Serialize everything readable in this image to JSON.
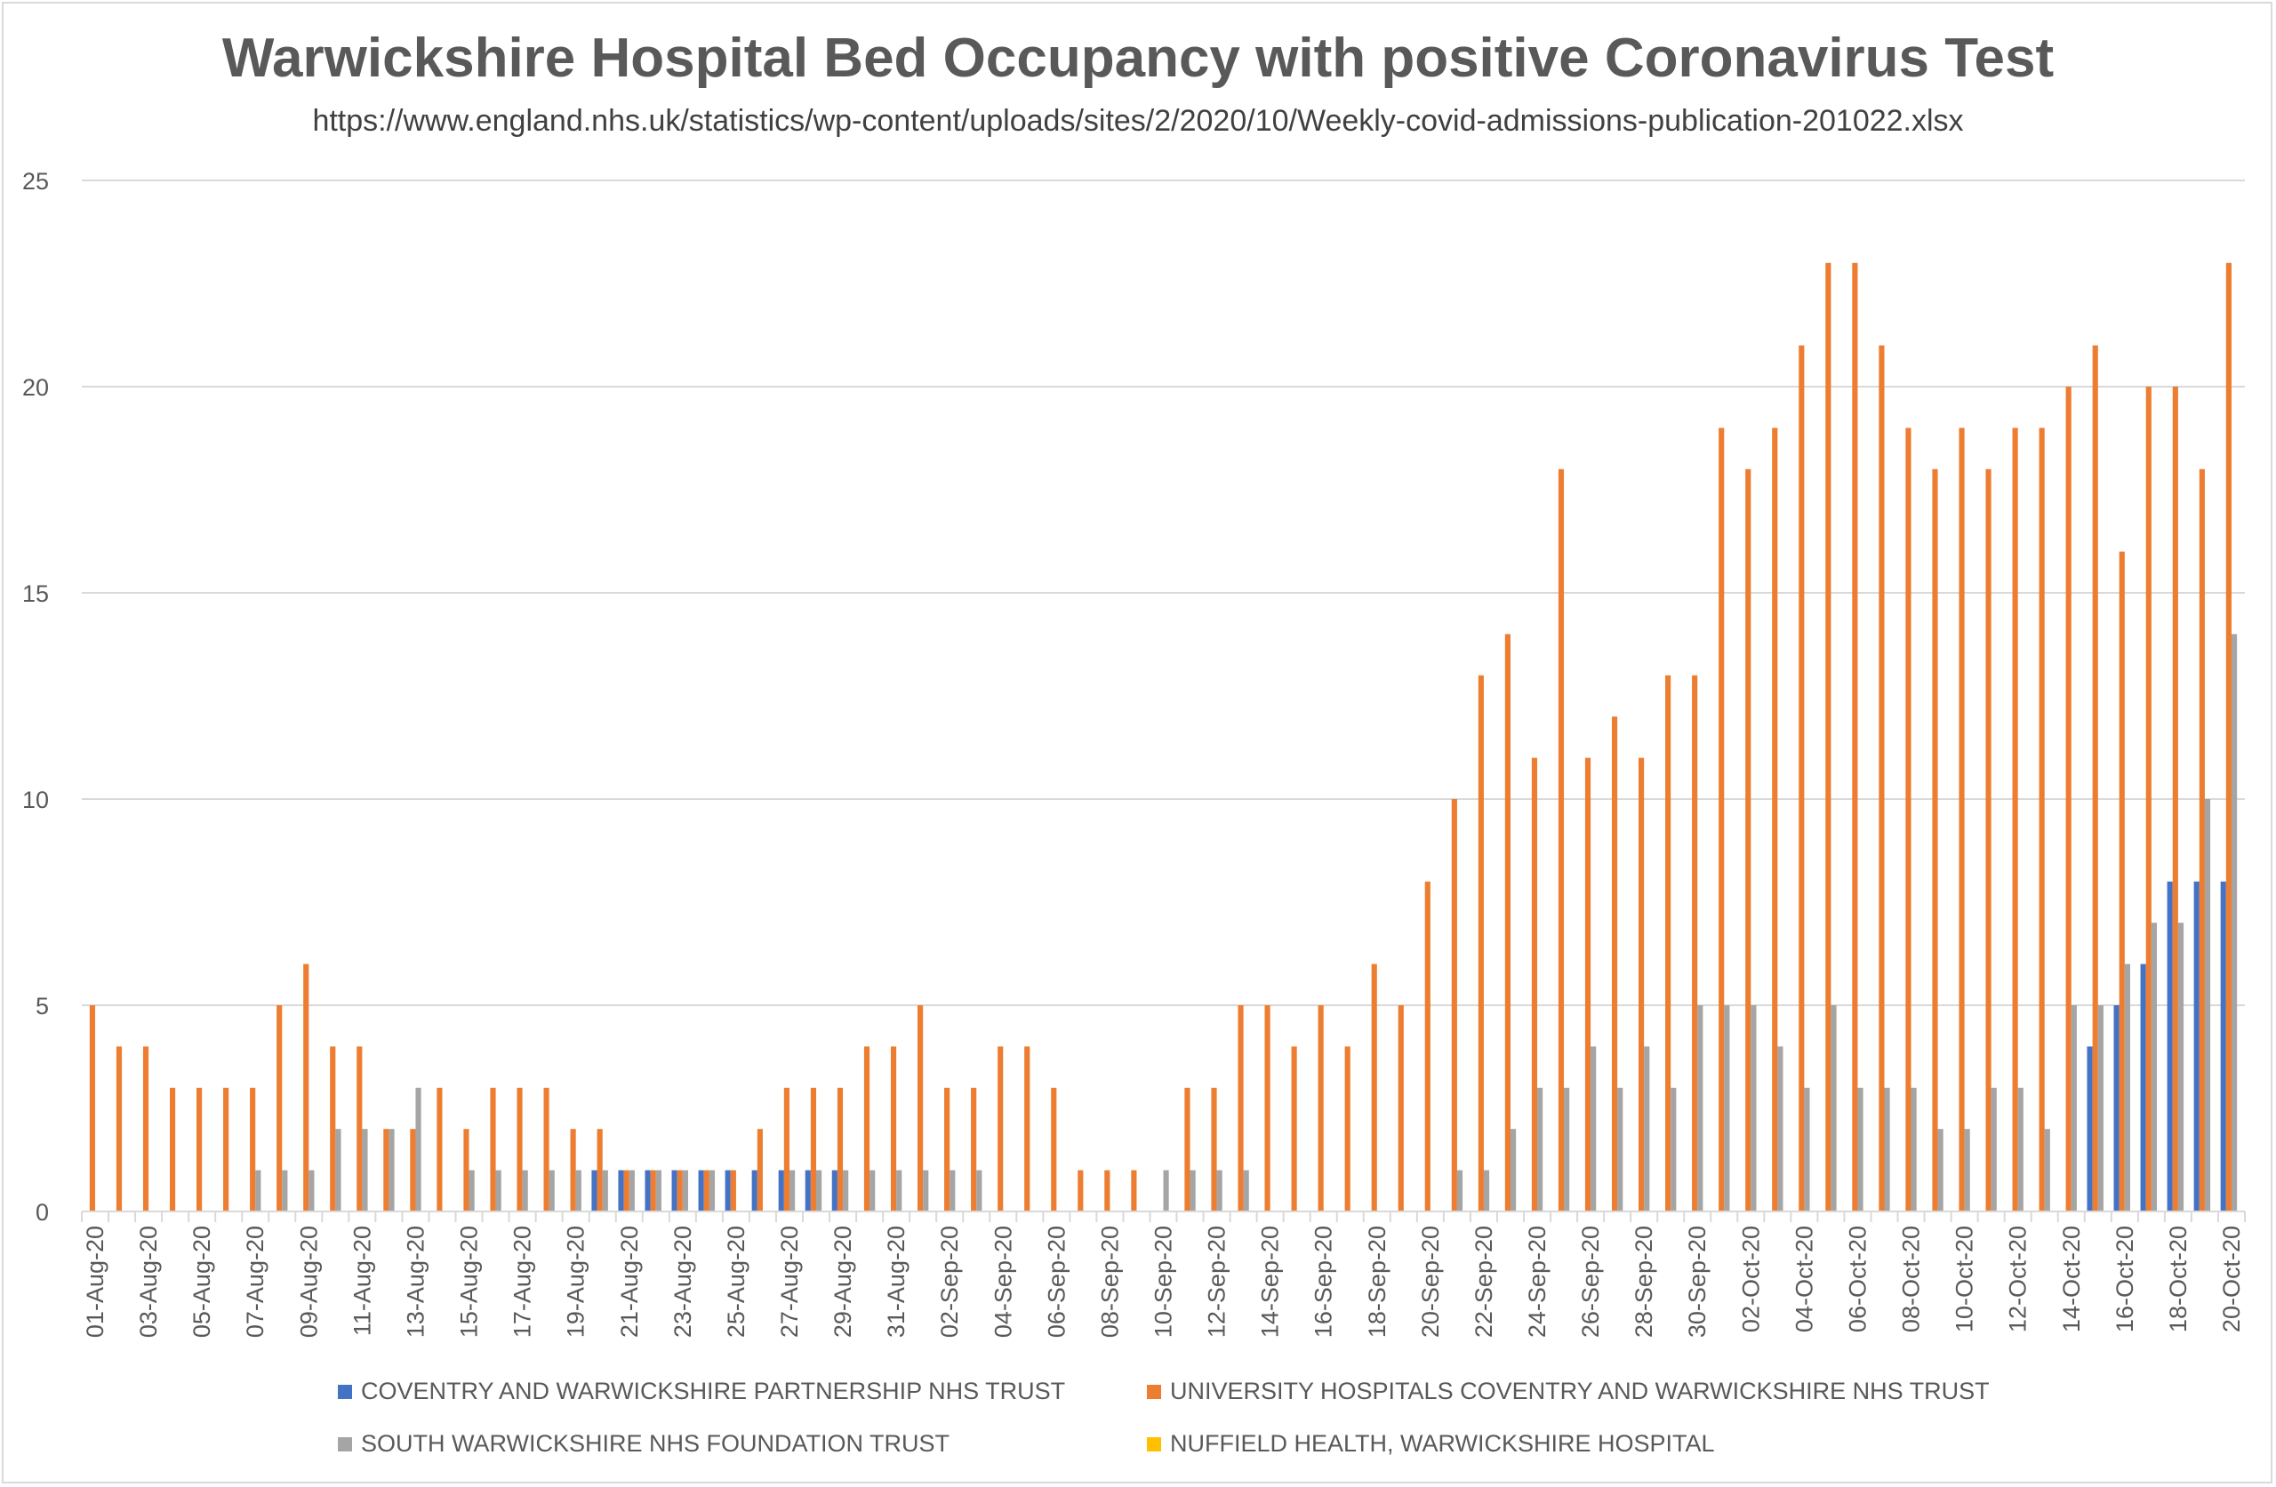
{
  "chart_data": {
    "type": "bar",
    "title": "Warwickshire Hospital Bed Occupancy with positive Coronavirus Test",
    "subtitle": "https://www.england.nhs.uk/statistics/wp-content/uploads/sites/2/2020/10/Weekly-covid-admissions-publication-201022.xlsx",
    "ylim": [
      0,
      25
    ],
    "yticks": [
      0,
      5,
      10,
      15,
      20,
      25
    ],
    "grid": true,
    "legend_position": "bottom",
    "categories": [
      "01-Aug-20",
      "02-Aug-20",
      "03-Aug-20",
      "04-Aug-20",
      "05-Aug-20",
      "06-Aug-20",
      "07-Aug-20",
      "08-Aug-20",
      "09-Aug-20",
      "10-Aug-20",
      "11-Aug-20",
      "12-Aug-20",
      "13-Aug-20",
      "14-Aug-20",
      "15-Aug-20",
      "16-Aug-20",
      "17-Aug-20",
      "18-Aug-20",
      "19-Aug-20",
      "20-Aug-20",
      "21-Aug-20",
      "22-Aug-20",
      "23-Aug-20",
      "24-Aug-20",
      "25-Aug-20",
      "26-Aug-20",
      "27-Aug-20",
      "28-Aug-20",
      "29-Aug-20",
      "30-Aug-20",
      "31-Aug-20",
      "01-Sep-20",
      "02-Sep-20",
      "03-Sep-20",
      "04-Sep-20",
      "05-Sep-20",
      "06-Sep-20",
      "07-Sep-20",
      "08-Sep-20",
      "09-Sep-20",
      "10-Sep-20",
      "11-Sep-20",
      "12-Sep-20",
      "13-Sep-20",
      "14-Sep-20",
      "15-Sep-20",
      "16-Sep-20",
      "17-Sep-20",
      "18-Sep-20",
      "19-Sep-20",
      "20-Sep-20",
      "21-Sep-20",
      "22-Sep-20",
      "23-Sep-20",
      "24-Sep-20",
      "25-Sep-20",
      "26-Sep-20",
      "27-Sep-20",
      "28-Sep-20",
      "29-Sep-20",
      "30-Sep-20",
      "01-Oct-20",
      "02-Oct-20",
      "03-Oct-20",
      "04-Oct-20",
      "05-Oct-20",
      "06-Oct-20",
      "07-Oct-20",
      "08-Oct-20",
      "09-Oct-20",
      "10-Oct-20",
      "11-Oct-20",
      "12-Oct-20",
      "13-Oct-20",
      "14-Oct-20",
      "15-Oct-20",
      "16-Oct-20",
      "17-Oct-20",
      "18-Oct-20",
      "19-Oct-20",
      "20-Oct-20"
    ],
    "xtick_labels": [
      "01-Aug-20",
      "03-Aug-20",
      "05-Aug-20",
      "07-Aug-20",
      "09-Aug-20",
      "11-Aug-20",
      "13-Aug-20",
      "15-Aug-20",
      "17-Aug-20",
      "19-Aug-20",
      "21-Aug-20",
      "23-Aug-20",
      "25-Aug-20",
      "27-Aug-20",
      "29-Aug-20",
      "31-Aug-20",
      "02-Sep-20",
      "04-Sep-20",
      "06-Sep-20",
      "08-Sep-20",
      "10-Sep-20",
      "12-Sep-20",
      "14-Sep-20",
      "16-Sep-20",
      "18-Sep-20",
      "20-Sep-20",
      "22-Sep-20",
      "24-Sep-20",
      "26-Sep-20",
      "28-Sep-20",
      "30-Sep-20",
      "02-Oct-20",
      "04-Oct-20",
      "06-Oct-20",
      "08-Oct-20",
      "10-Oct-20",
      "12-Oct-20",
      "14-Oct-20",
      "16-Oct-20",
      "18-Oct-20",
      "20-Oct-20"
    ],
    "series": [
      {
        "name": "COVENTRY AND WARWICKSHIRE PARTNERSHIP NHS TRUST",
        "color": "#4472c4",
        "values": [
          0,
          0,
          0,
          0,
          0,
          0,
          0,
          0,
          0,
          0,
          0,
          0,
          0,
          0,
          0,
          0,
          0,
          0,
          0,
          1,
          1,
          1,
          1,
          1,
          1,
          1,
          1,
          1,
          1,
          0,
          0,
          0,
          0,
          0,
          0,
          0,
          0,
          0,
          0,
          0,
          0,
          0,
          0,
          0,
          0,
          0,
          0,
          0,
          0,
          0,
          0,
          0,
          0,
          0,
          0,
          0,
          0,
          0,
          0,
          0,
          0,
          0,
          0,
          0,
          0,
          0,
          0,
          0,
          0,
          0,
          0,
          0,
          0,
          0,
          0,
          4,
          5,
          6,
          8,
          8,
          8
        ]
      },
      {
        "name": "UNIVERSITY HOSPITALS COVENTRY AND WARWICKSHIRE NHS TRUST",
        "color": "#ed7d31",
        "values": [
          5,
          4,
          4,
          3,
          3,
          3,
          3,
          5,
          6,
          4,
          4,
          2,
          2,
          3,
          2,
          3,
          3,
          3,
          2,
          2,
          1,
          1,
          1,
          1,
          1,
          2,
          3,
          3,
          3,
          4,
          4,
          5,
          3,
          3,
          4,
          4,
          3,
          1,
          1,
          1,
          0,
          3,
          3,
          5,
          5,
          4,
          5,
          4,
          6,
          5,
          8,
          10,
          13,
          14,
          11,
          18,
          11,
          12,
          11,
          13,
          13,
          19,
          18,
          19,
          21,
          23,
          23,
          21,
          19,
          18,
          19,
          18,
          19,
          19,
          20,
          21,
          16,
          20,
          20,
          18,
          23
        ]
      },
      {
        "name": "SOUTH WARWICKSHIRE NHS FOUNDATION TRUST",
        "color": "#a5a5a5",
        "values": [
          0,
          0,
          0,
          0,
          0,
          0,
          1,
          1,
          1,
          2,
          2,
          2,
          3,
          0,
          1,
          1,
          1,
          1,
          1,
          1,
          1,
          1,
          1,
          1,
          0,
          0,
          1,
          1,
          1,
          1,
          1,
          1,
          1,
          1,
          0,
          0,
          0,
          0,
          0,
          0,
          1,
          1,
          1,
          1,
          0,
          0,
          0,
          0,
          0,
          0,
          0,
          1,
          1,
          2,
          3,
          3,
          4,
          3,
          4,
          3,
          5,
          5,
          5,
          4,
          3,
          5,
          3,
          3,
          3,
          2,
          2,
          3,
          3,
          2,
          5,
          5,
          6,
          7,
          7,
          10,
          14
        ]
      },
      {
        "name": "NUFFIELD HEALTH, WARWICKSHIRE HOSPITAL",
        "color": "#ffc000",
        "values": [
          0,
          0,
          0,
          0,
          0,
          0,
          0,
          0,
          0,
          0,
          0,
          0,
          0,
          0,
          0,
          0,
          0,
          0,
          0,
          0,
          0,
          0,
          0,
          0,
          0,
          0,
          0,
          0,
          0,
          0,
          0,
          0,
          0,
          0,
          0,
          0,
          0,
          0,
          0,
          0,
          0,
          0,
          0,
          0,
          0,
          0,
          0,
          0,
          0,
          0,
          0,
          0,
          0,
          0,
          0,
          0,
          0,
          0,
          0,
          0,
          0,
          0,
          0,
          0,
          0,
          0,
          0,
          0,
          0,
          0,
          0,
          0,
          0,
          0,
          0,
          0,
          0,
          0,
          0,
          0,
          0
        ]
      }
    ]
  }
}
